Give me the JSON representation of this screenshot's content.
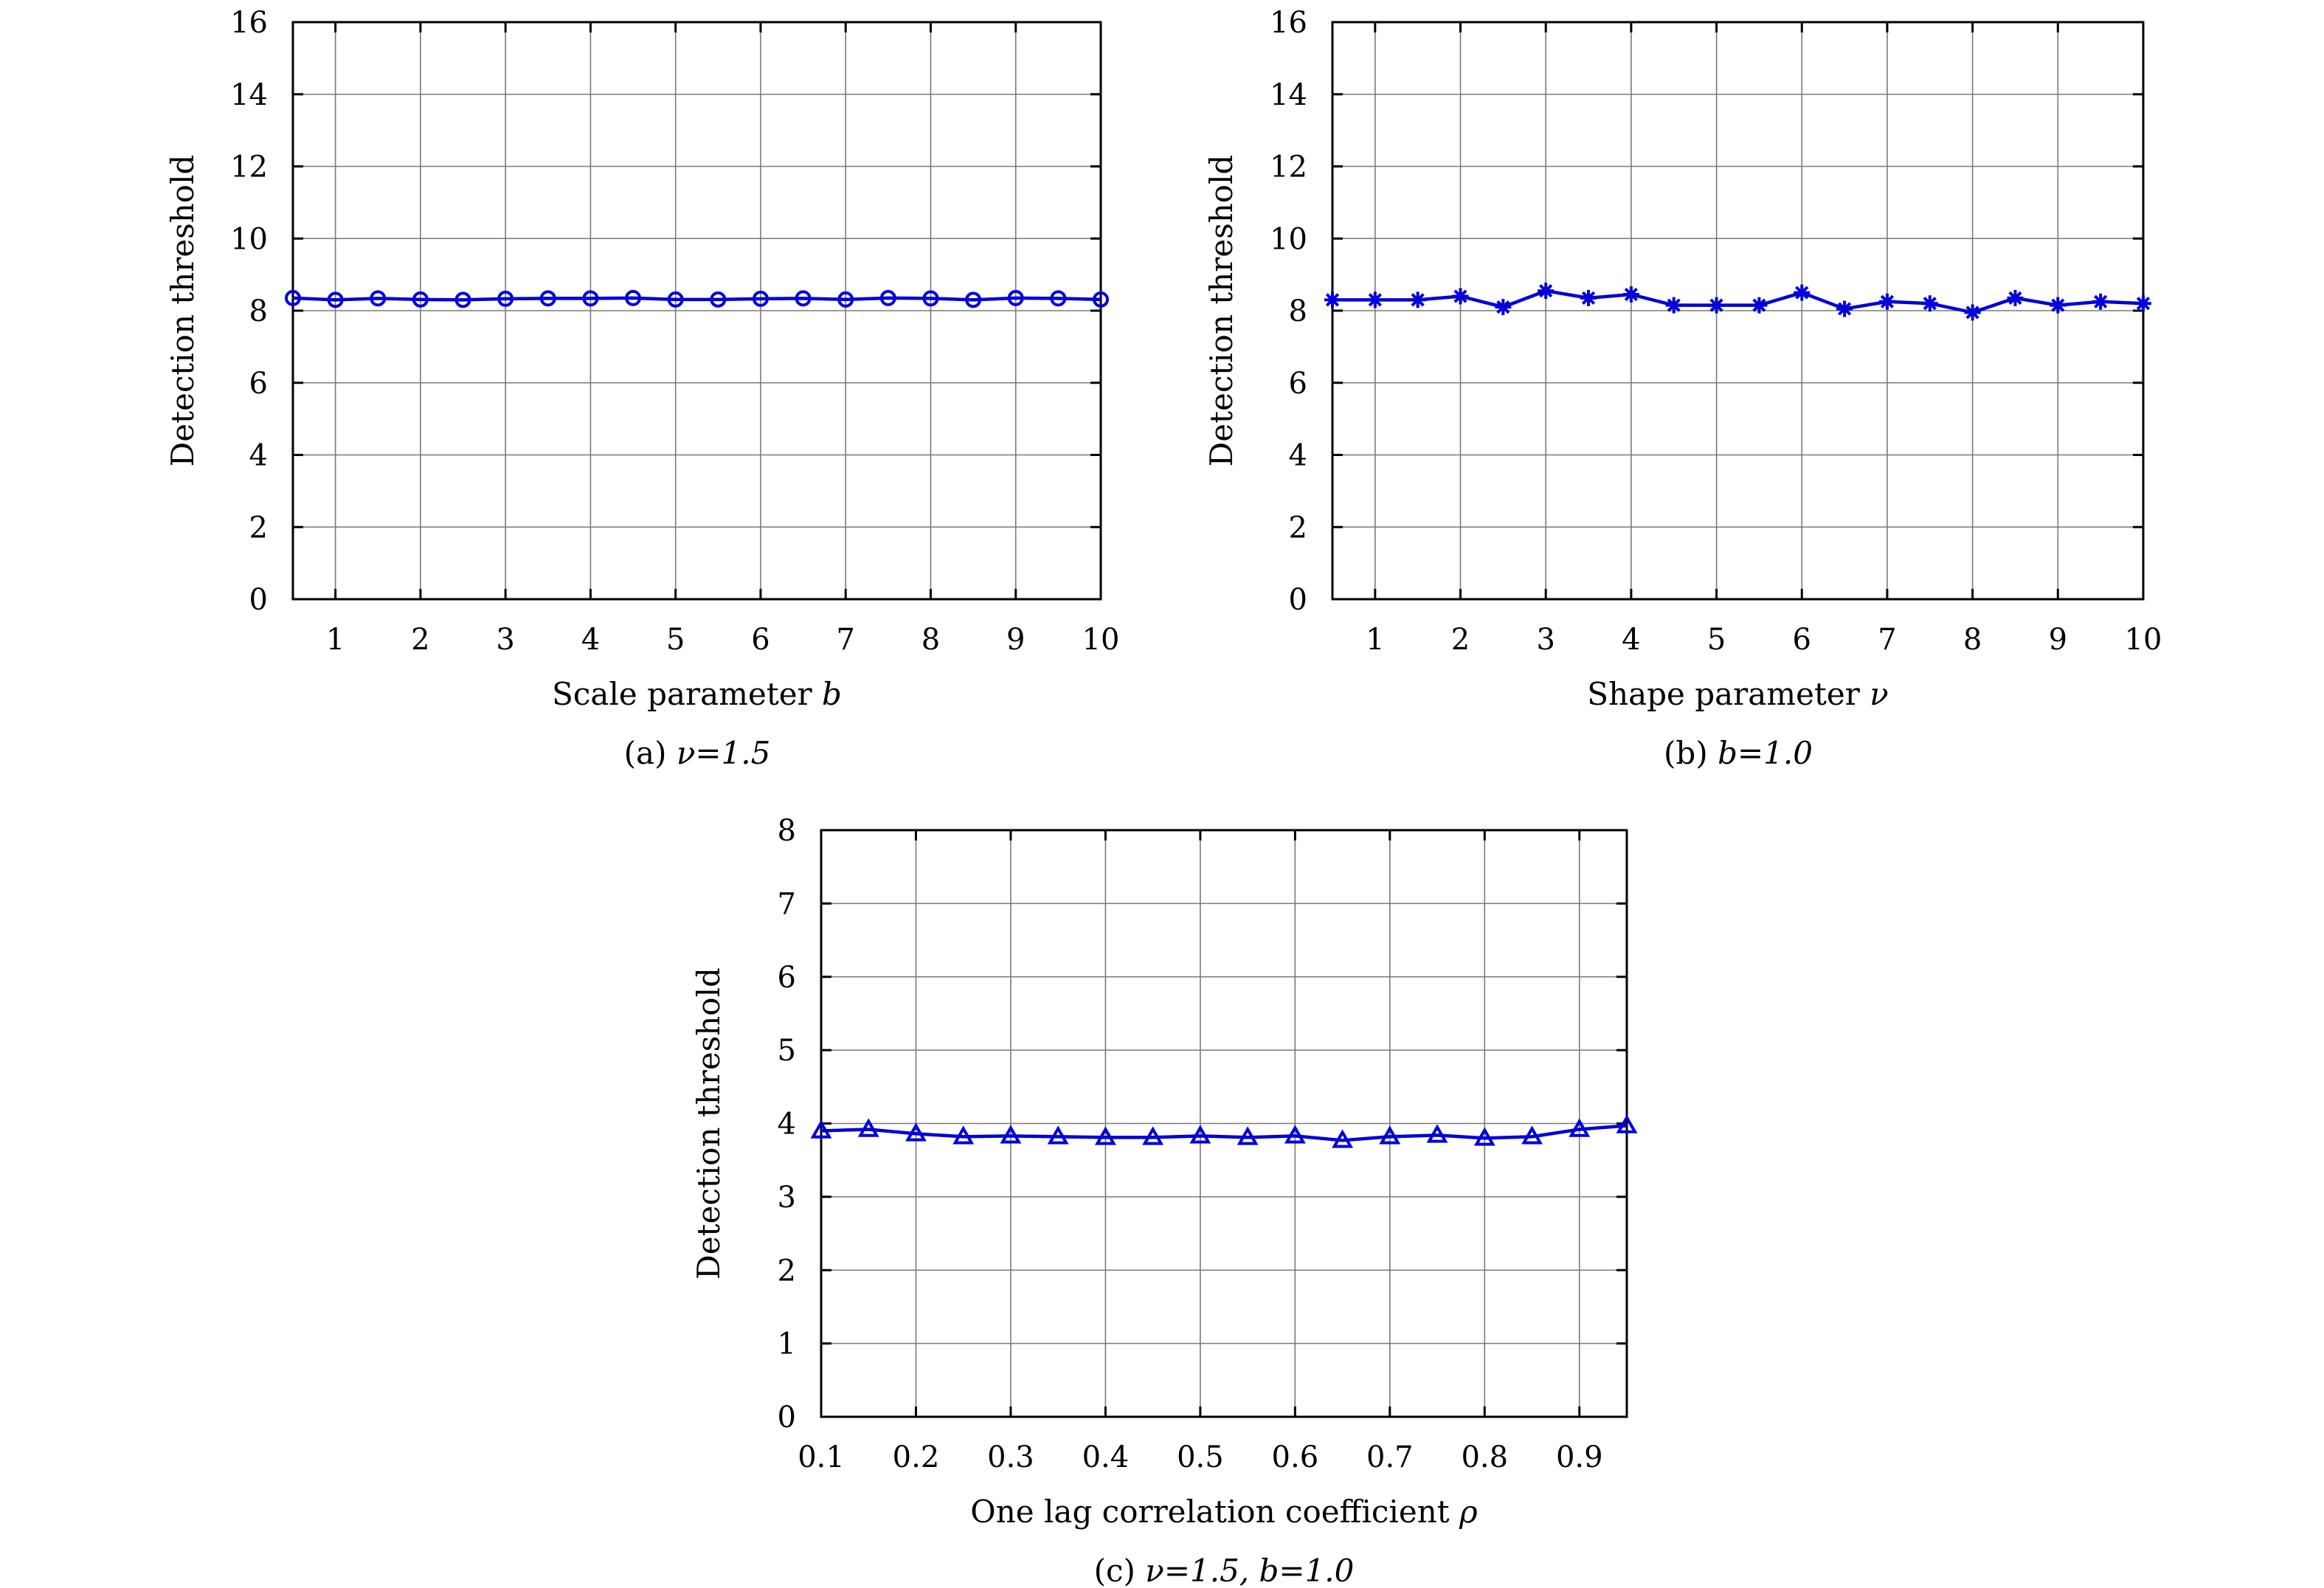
{
  "colors": {
    "series": "#0000d8",
    "grid": "#7a7a7a",
    "axis": "#000000"
  },
  "chart_data": [
    {
      "type": "line",
      "marker": "circle",
      "ylabel": "Detection threshold",
      "xlabel": "Scale parameter b",
      "xlabel_text": "Scale parameter ",
      "xlabel_var": "b",
      "caption": "(a) ν=1.5",
      "caption_text": "(a) ",
      "caption_math": "ν=1.5",
      "xlim": [
        0.5,
        10
      ],
      "ylim": [
        0,
        16
      ],
      "xticks": [
        1,
        2,
        3,
        4,
        5,
        6,
        7,
        8,
        9,
        10
      ],
      "xtick_labels": [
        "1",
        "2",
        "3",
        "4",
        "5",
        "6",
        "7",
        "8",
        "9",
        "10"
      ],
      "yticks": [
        0,
        2,
        4,
        6,
        8,
        10,
        12,
        14,
        16
      ],
      "ytick_labels": [
        "0",
        "2",
        "4",
        "6",
        "8",
        "10",
        "12",
        "14",
        "16"
      ],
      "grid": true,
      "x": [
        0.5,
        1,
        1.5,
        2,
        2.5,
        3,
        3.5,
        4,
        4.5,
        5,
        5.5,
        6,
        6.5,
        7,
        7.5,
        8,
        8.5,
        9,
        9.5,
        10
      ],
      "y": [
        8.35,
        8.3,
        8.34,
        8.31,
        8.3,
        8.33,
        8.34,
        8.34,
        8.35,
        8.31,
        8.31,
        8.33,
        8.34,
        8.31,
        8.35,
        8.34,
        8.3,
        8.35,
        8.34,
        8.31
      ]
    },
    {
      "type": "line",
      "marker": "asterisk",
      "ylabel": "Detection threshold",
      "xlabel": "Shape parameter ν",
      "xlabel_text": "Shape parameter ",
      "xlabel_var": "ν",
      "caption": "(b) b=1.0",
      "caption_text": "(b) ",
      "caption_math": "b=1.0",
      "xlim": [
        0.5,
        10
      ],
      "ylim": [
        0,
        16
      ],
      "xticks": [
        1,
        2,
        3,
        4,
        5,
        6,
        7,
        8,
        9,
        10
      ],
      "xtick_labels": [
        "1",
        "2",
        "3",
        "4",
        "5",
        "6",
        "7",
        "8",
        "9",
        "10"
      ],
      "yticks": [
        0,
        2,
        4,
        6,
        8,
        10,
        12,
        14,
        16
      ],
      "ytick_labels": [
        "0",
        "2",
        "4",
        "6",
        "8",
        "10",
        "12",
        "14",
        "16"
      ],
      "grid": true,
      "x": [
        0.5,
        1,
        1.5,
        2,
        2.5,
        3,
        3.5,
        4,
        4.5,
        5,
        5.5,
        6,
        6.5,
        7,
        7.5,
        8,
        8.5,
        9,
        9.5,
        10
      ],
      "y": [
        8.3,
        8.3,
        8.3,
        8.4,
        8.1,
        8.55,
        8.35,
        8.45,
        8.15,
        8.15,
        8.15,
        8.5,
        8.05,
        8.25,
        8.2,
        7.95,
        8.35,
        8.15,
        8.25,
        8.2
      ]
    },
    {
      "type": "line",
      "marker": "triangle",
      "ylabel": "Detection threshold",
      "xlabel": "One lag correlation coefficient ρ",
      "xlabel_text": "One lag correlation coefficient ",
      "xlabel_var": "ρ",
      "caption": "(c) ν=1.5, b=1.0",
      "caption_text": "(c) ",
      "caption_math": "ν=1.5, b=1.0",
      "xlim": [
        0.1,
        0.95
      ],
      "ylim": [
        0,
        8
      ],
      "xticks": [
        0.1,
        0.2,
        0.3,
        0.4,
        0.5,
        0.6,
        0.7,
        0.8,
        0.9
      ],
      "xtick_labels": [
        "0.1",
        "0.2",
        "0.3",
        "0.4",
        "0.5",
        "0.6",
        "0.7",
        "0.8",
        "0.9"
      ],
      "yticks": [
        0,
        1,
        2,
        3,
        4,
        5,
        6,
        7,
        8
      ],
      "ytick_labels": [
        "0",
        "1",
        "2",
        "3",
        "4",
        "5",
        "6",
        "7",
        "8"
      ],
      "grid": true,
      "x": [
        0.1,
        0.15,
        0.2,
        0.25,
        0.3,
        0.35,
        0.4,
        0.45,
        0.5,
        0.55,
        0.6,
        0.65,
        0.7,
        0.75,
        0.8,
        0.85,
        0.9,
        0.95
      ],
      "y": [
        3.9,
        3.92,
        3.86,
        3.82,
        3.83,
        3.82,
        3.81,
        3.81,
        3.83,
        3.81,
        3.83,
        3.77,
        3.82,
        3.84,
        3.8,
        3.82,
        3.92,
        3.97
      ]
    }
  ]
}
